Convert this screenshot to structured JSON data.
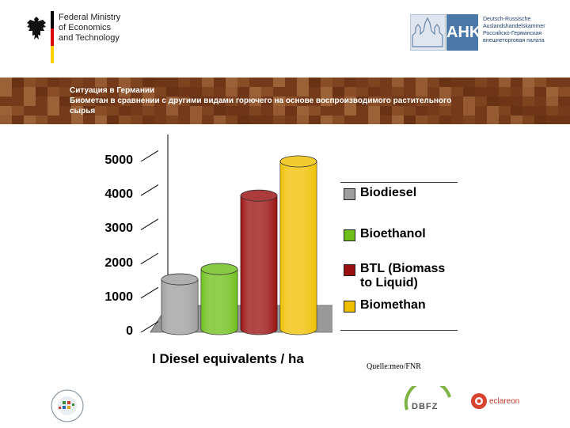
{
  "header": {
    "ministry_name": "Federal Ministry\nof Economics\nand Technology",
    "ahk_short": "AHK",
    "ahk_full": "Deutsch-Russische\nAuslandshandelskammer\nРоссийско-Германская\nвнешнеторговая палата"
  },
  "banner": {
    "line1": "Ситуация в Германии",
    "line2": "Биометан в сравнении с другими видами горючего на основе воспроизводимого растительного",
    "line3": "сырья"
  },
  "chart_data": {
    "type": "bar",
    "style": "3d-cylinder",
    "categories": [
      "Biodiesel",
      "Bioethanol",
      "BTL (Biomass\nto Liquid)",
      "Biomethan"
    ],
    "values": [
      1550,
      1850,
      4000,
      5000
    ],
    "colors": [
      "#9e9e9e",
      "#6fbf1a",
      "#9a1010",
      "#f0c000"
    ],
    "xlabel": "l Diesel equivalents / ha",
    "ylabel": "",
    "ylim": [
      0,
      5000
    ],
    "yticks": [
      "0",
      "1000",
      "2000",
      "3000",
      "4000",
      "5000"
    ],
    "grid": false,
    "legend_position": "right"
  },
  "source": "Quelle:meo/FNR",
  "footer": {
    "dbfz": "DBFZ",
    "eclareon": "eclareon"
  }
}
